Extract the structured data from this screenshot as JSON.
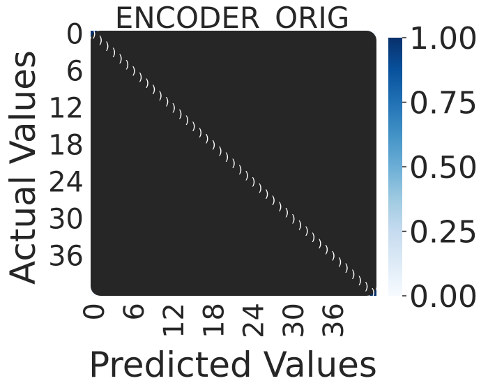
{
  "chart_data": {
    "type": "heatmap",
    "title": "ENCODER_ORIG",
    "xlabel": "Predicted Values",
    "ylabel": "Actual Values",
    "x_tick_labels": [
      "0",
      "6",
      "12",
      "18",
      "24",
      "30",
      "36"
    ],
    "y_tick_labels": [
      "0",
      "6",
      "12",
      "18",
      "24",
      "30",
      "36"
    ],
    "n_classes": 43,
    "colormap": "Blues",
    "colorbar": {
      "range": [
        0.0,
        1.0
      ],
      "ticks": [
        "0.00",
        "0.25",
        "0.50",
        "0.75",
        "1.00"
      ]
    },
    "annotation_color": "#262626",
    "diagonal_value_approx": 1.0,
    "off_diagonal_value_approx": 0.0
  }
}
